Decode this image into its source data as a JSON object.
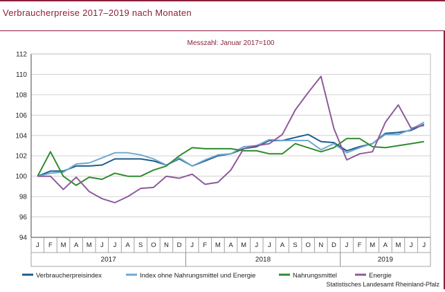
{
  "title": "Verbraucherpreise 2017–2019 nach Monaten",
  "source": "Statistisches Landesamt Rheinland-Pfalz",
  "chart_data": {
    "type": "line",
    "subtitle": "Messzahl: Januar 2017=100",
    "xlabel": "",
    "ylabel": "",
    "ylim": [
      94,
      112
    ],
    "yticks": [
      94,
      96,
      98,
      100,
      102,
      104,
      106,
      108,
      110,
      112
    ],
    "grid": "horizontal",
    "legend": "bottom",
    "x": [
      "J",
      "F",
      "M",
      "A",
      "M",
      "J",
      "J",
      "A",
      "S",
      "O",
      "N",
      "D",
      "J",
      "F",
      "M",
      "A",
      "M",
      "J",
      "J",
      "A",
      "S",
      "O",
      "N",
      "D",
      "J",
      "F",
      "M",
      "A",
      "M",
      "J",
      "J"
    ],
    "years": [
      {
        "label": "2017",
        "start": 0,
        "end": 11
      },
      {
        "label": "2018",
        "start": 12,
        "end": 23
      },
      {
        "label": "2019",
        "start": 24,
        "end": 30
      }
    ],
    "series": [
      {
        "name": "Verbraucherpreisindex",
        "color": "#1a5c8c",
        "values": [
          100.0,
          100.5,
          100.5,
          101.0,
          101.0,
          101.1,
          101.7,
          101.7,
          101.7,
          101.5,
          101.1,
          101.7,
          101.0,
          101.5,
          102.0,
          102.2,
          102.7,
          102.9,
          103.5,
          103.5,
          103.8,
          104.1,
          103.4,
          103.3,
          102.5,
          102.9,
          103.2,
          104.2,
          104.3,
          104.5,
          105.1
        ]
      },
      {
        "name": "Index ohne Nahrungsmittel und Energie",
        "color": "#6fa8d0",
        "values": [
          100.0,
          100.3,
          100.4,
          101.2,
          101.3,
          101.8,
          102.3,
          102.3,
          102.1,
          101.7,
          101.1,
          101.8,
          101.0,
          101.6,
          102.1,
          102.2,
          102.9,
          103.0,
          103.6,
          103.5,
          103.5,
          103.5,
          102.6,
          103.2,
          102.3,
          102.8,
          103.2,
          104.1,
          104.1,
          104.6,
          105.3
        ]
      },
      {
        "name": "Nahrungsmittel",
        "color": "#2e8b2e",
        "values": [
          100.0,
          102.4,
          100.0,
          99.1,
          99.9,
          99.7,
          100.3,
          100.0,
          100.0,
          100.6,
          101.0,
          102.0,
          102.8,
          102.7,
          102.7,
          102.7,
          102.5,
          102.5,
          102.2,
          102.2,
          103.2,
          102.8,
          102.4,
          102.8,
          103.7,
          103.7,
          102.9,
          102.8,
          103.0,
          103.2,
          103.4
        ]
      },
      {
        "name": "Energie",
        "color": "#8e5a9b",
        "values": [
          100.0,
          100.0,
          98.7,
          99.9,
          98.5,
          97.8,
          97.4,
          98.0,
          98.8,
          98.9,
          100.0,
          99.8,
          100.2,
          99.2,
          99.4,
          100.6,
          102.7,
          103.0,
          103.2,
          104.1,
          106.5,
          108.2,
          109.8,
          104.7,
          101.6,
          102.2,
          102.4,
          105.3,
          107.0,
          104.7,
          105.0
        ]
      }
    ]
  }
}
